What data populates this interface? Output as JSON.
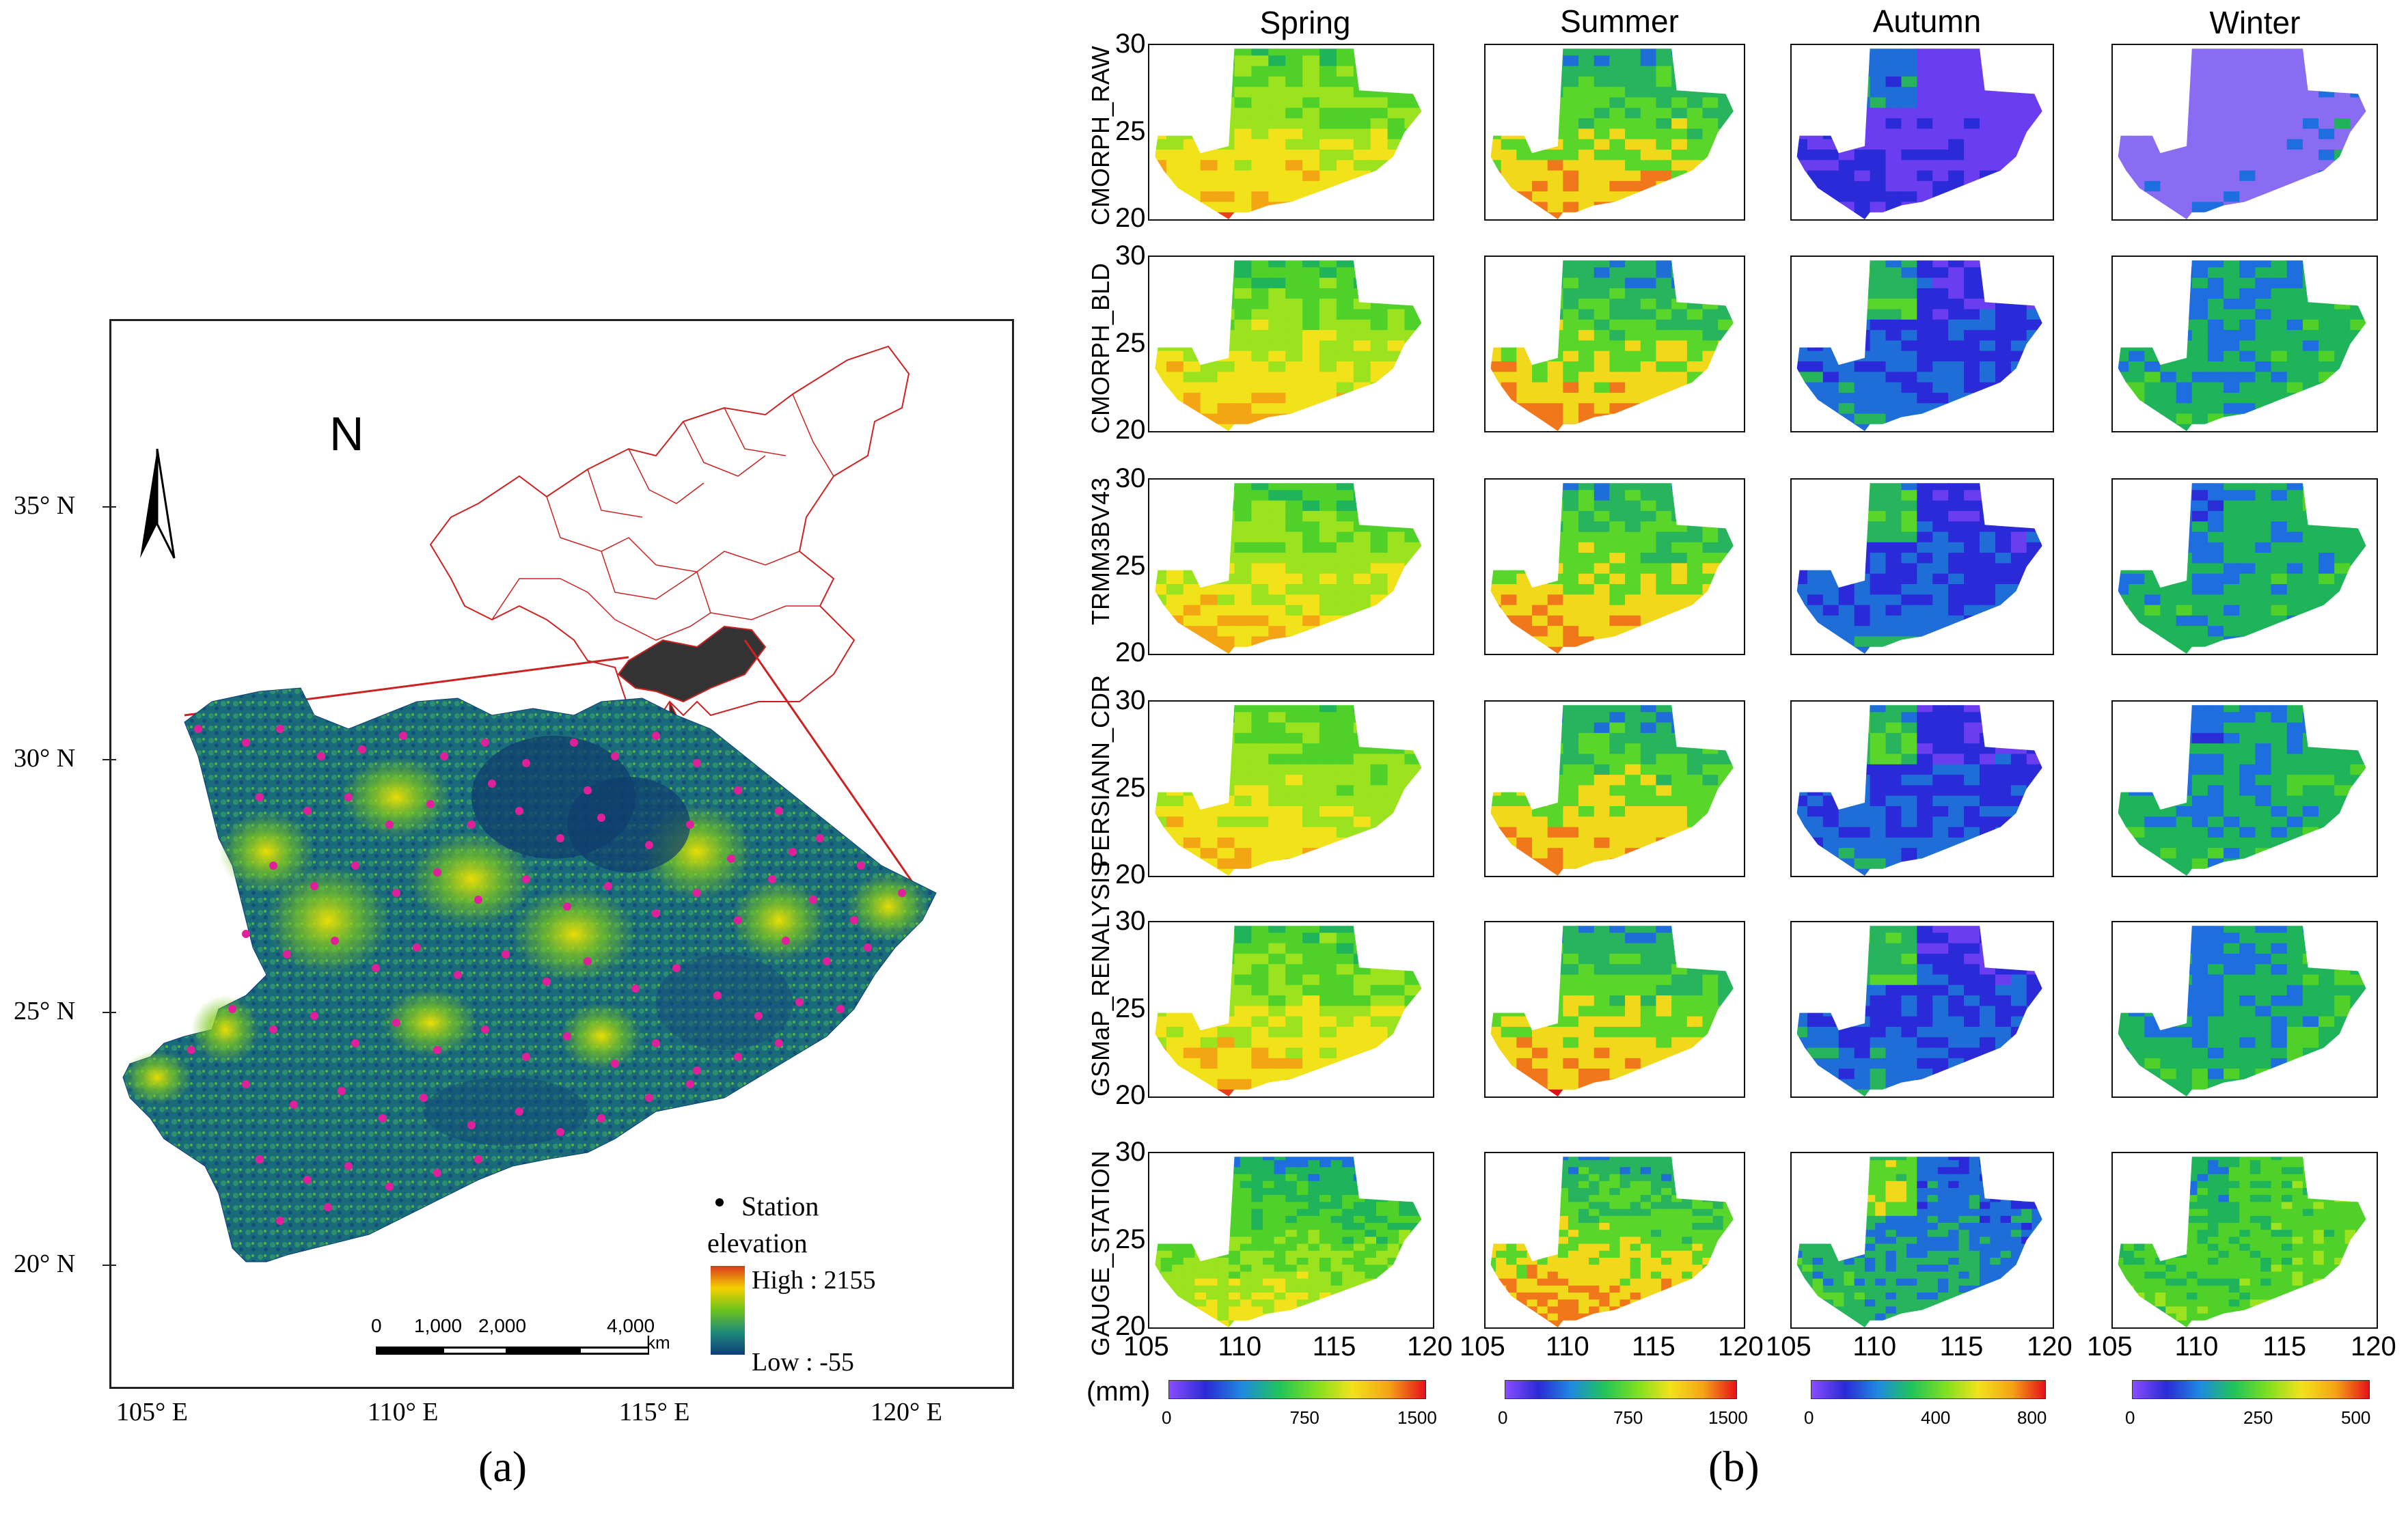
{
  "panel_a": {
    "label": "(a)",
    "north_label": "N",
    "lat_ticks": [
      "35°  N",
      "30°  N",
      "25°  N",
      "20°  N"
    ],
    "lon_ticks": [
      "105°  E",
      "110°  E",
      "115°  E",
      "120°  E"
    ],
    "legend": {
      "station": "Station",
      "elevation": "elevation",
      "high": "High : 2155",
      "low": "Low : -55"
    },
    "scalebar": {
      "ticks": [
        "0",
        "1,000",
        "2,000",
        "4,000"
      ],
      "unit": "km"
    }
  },
  "panel_b": {
    "label": "(b)",
    "seasons": [
      "Spring",
      "Summer",
      "Autumn",
      "Winter"
    ],
    "rows": [
      "CMORPH_RAW",
      "CMORPH_BLD",
      "TRMM3BV43",
      "PERSIANN_CDR",
      "GSMaP_RENALYSIS",
      "GAUGE_STATION"
    ],
    "y_ticks": [
      "30",
      "25",
      "20"
    ],
    "x_ticks": [
      "105",
      "110",
      "115",
      "120"
    ],
    "unit": "(mm)",
    "colorbars": [
      {
        "ticks": [
          "0",
          "750",
          "1500"
        ]
      },
      {
        "ticks": [
          "0",
          "750",
          "1500"
        ]
      },
      {
        "ticks": [
          "0",
          "400",
          "800"
        ]
      },
      {
        "ticks": [
          "0",
          "250",
          "500"
        ]
      }
    ]
  },
  "colors": {
    "china_outline": "#cc2222",
    "region_fill": "#333333",
    "station": "#e0209a",
    "precip_low": "#8a4dff",
    "precip_high": "#e8101a"
  }
}
